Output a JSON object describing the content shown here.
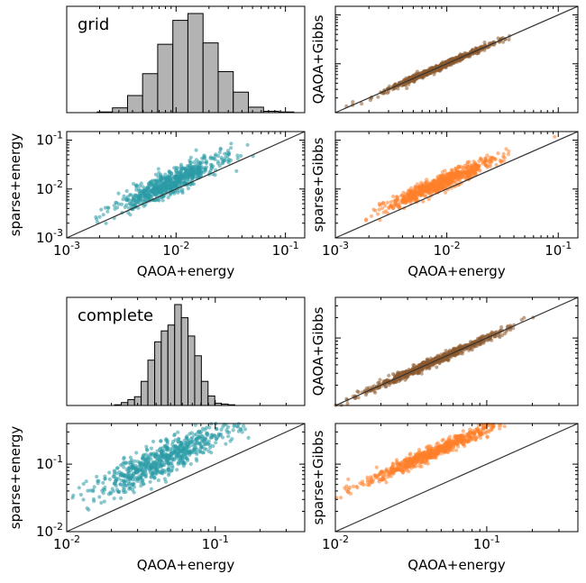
{
  "chart_data": [
    {
      "id": "grid",
      "panel_title": "grid",
      "histogram": {
        "type": "bar",
        "edges": [
          0.0019,
          0.00262,
          0.0036,
          0.00494,
          0.00679,
          0.00934,
          0.01283,
          0.01764,
          0.02425,
          0.03333,
          0.04581,
          0.063,
          0.08659,
          0.11902
        ],
        "counts": [
          1,
          7,
          25,
          57,
          100,
          135,
          145,
          102,
          60,
          30,
          8,
          2,
          1
        ],
        "color": "#b3b3b3",
        "xlim_log": [
          0.001,
          0.15
        ]
      },
      "scatter_gibbs": {
        "type": "scatter",
        "ylabel": "QAOA+Gibbs",
        "color": "#8c5a2e",
        "xlim_log": [
          0.001,
          0.15
        ],
        "ylim_log": [
          0.001,
          0.15
        ],
        "center_ratio": 1.0,
        "spread_log10": 0.03
      },
      "scatter_energy": {
        "type": "scatter",
        "xlabel": "QAOA+energy",
        "ylabel": "sparse+energy",
        "color": "#2a9aa6",
        "xlim_log": [
          0.001,
          0.15
        ],
        "ylim_log": [
          0.001,
          0.15
        ],
        "center_ratio": 1.5,
        "spread_log10": 0.12,
        "xticks": [
          {
            "v": 0.001,
            "l": "10",
            "e": "-3"
          },
          {
            "v": 0.01,
            "l": "10",
            "e": "-2"
          },
          {
            "v": 0.1,
            "l": "10",
            "e": "-1"
          }
        ],
        "yticks": [
          {
            "v": 0.001,
            "l": "10",
            "e": "-3"
          },
          {
            "v": 0.01,
            "l": "10",
            "e": "-2"
          },
          {
            "v": 0.1,
            "l": "10",
            "e": "-1"
          }
        ]
      },
      "scatter_sparse_gibbs": {
        "type": "scatter",
        "xlabel": "QAOA+energy",
        "ylabel": "sparse+Gibbs",
        "color": "#ff7f2a",
        "xlim_log": [
          0.001,
          0.15
        ],
        "ylim_log": [
          0.001,
          0.15
        ],
        "center_ratio": 1.5,
        "spread_log10": 0.08,
        "xticks": [
          {
            "v": 0.001,
            "l": "10",
            "e": "-3"
          },
          {
            "v": 0.01,
            "l": "10",
            "e": "-2"
          },
          {
            "v": 0.1,
            "l": "10",
            "e": "-1"
          }
        ]
      }
    },
    {
      "id": "complete",
      "panel_title": "complete",
      "histogram": {
        "type": "bar",
        "edges": [
          0.021,
          0.0233,
          0.0258,
          0.0286,
          0.0317,
          0.0352,
          0.0391,
          0.0433,
          0.048,
          0.0533,
          0.0591,
          0.0655,
          0.0727,
          0.0806,
          0.0894,
          0.0992,
          0.11,
          0.122,
          0.1353
        ],
        "counts": [
          1,
          4,
          8,
          12,
          33,
          62,
          87,
          102,
          110,
          138,
          120,
          95,
          68,
          33,
          13,
          3,
          2,
          1
        ],
        "color": "#b3b3b3",
        "xlim_log": [
          0.01,
          0.4
        ]
      },
      "scatter_gibbs": {
        "type": "scatter",
        "ylabel": "QAOA+Gibbs",
        "color": "#8c5a2e",
        "xlim_log": [
          0.01,
          0.4
        ],
        "ylim_log": [
          0.01,
          0.4
        ],
        "center_ratio": 1.0,
        "spread_log10": 0.03
      },
      "scatter_energy": {
        "type": "scatter",
        "xlabel": "QAOA+energy",
        "ylabel": "sparse+energy",
        "color": "#2a9aa6",
        "xlim_log": [
          0.01,
          0.4
        ],
        "ylim_log": [
          0.01,
          0.4
        ],
        "center_ratio": 2.6,
        "spread_log10": 0.12,
        "xticks": [
          {
            "v": 0.01,
            "l": "10",
            "e": "-2"
          },
          {
            "v": 0.1,
            "l": "10",
            "e": "-1"
          }
        ],
        "yticks": [
          {
            "v": 0.01,
            "l": "10",
            "e": "-2"
          },
          {
            "v": 0.1,
            "l": "10",
            "e": "-1"
          }
        ]
      },
      "scatter_sparse_gibbs": {
        "type": "scatter",
        "xlabel": "QAOA+energy",
        "ylabel": "sparse+Gibbs",
        "color": "#ff7f2a",
        "xlim_log": [
          0.01,
          0.4
        ],
        "ylim_log": [
          0.01,
          0.4
        ],
        "center_ratio": 3.4,
        "spread_log10": 0.05,
        "xticks": [
          {
            "v": 0.01,
            "l": "10",
            "e": "-2"
          },
          {
            "v": 0.1,
            "l": "10",
            "e": "-1"
          }
        ]
      }
    }
  ]
}
